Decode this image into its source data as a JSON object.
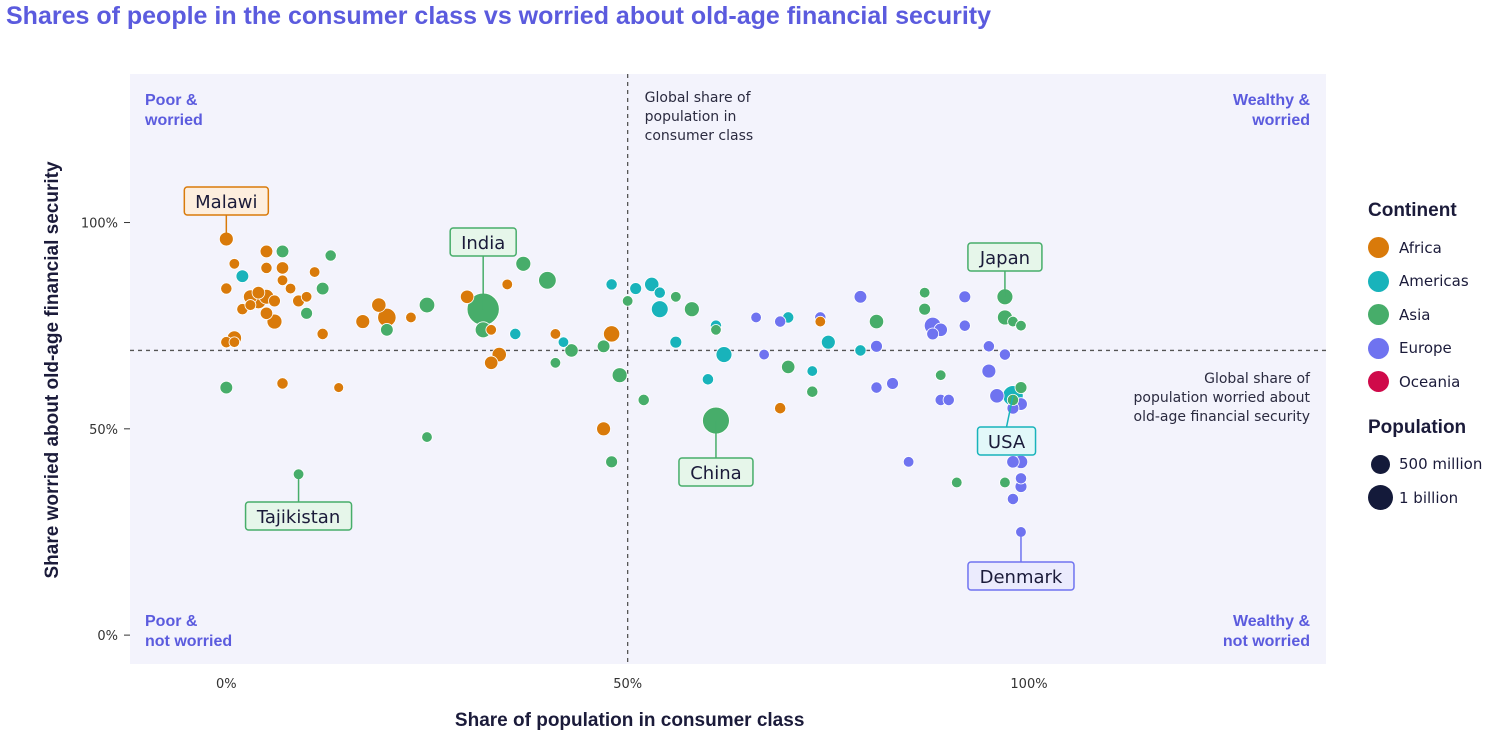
{
  "title": "Shares of people in the consumer class vs worried about old-age financial security",
  "colors": {
    "title": "#5b5bde",
    "plot_bg": "#f3f3fc",
    "quadrant_label": "#5b5bde",
    "Africa": "#d97a0a",
    "Americas": "#18b3bb",
    "Asia": "#47ad6a",
    "Europe": "#6f73f0",
    "Oceania": "#cf0a4a"
  },
  "quadrants": {
    "top_left": [
      "Poor &",
      "worried"
    ],
    "top_right": [
      "Wealthy &",
      "worried"
    ],
    "bottom_left": [
      "Poor &",
      "not worried"
    ],
    "bottom_right": [
      "Wealthy &",
      "not worried"
    ]
  },
  "reference_lines": {
    "vertical_label": [
      "Global share of",
      "population in",
      "consumer class"
    ],
    "horizontal_label": [
      "Global share of",
      "population worried about",
      "old-age financial security"
    ]
  },
  "legend": {
    "continent_title": "Continent",
    "continents": [
      "Africa",
      "Americas",
      "Asia",
      "Europe",
      "Oceania"
    ],
    "population_title": "Population",
    "population_items": [
      "500 million",
      "1 billion"
    ]
  },
  "chart_data": {
    "type": "scatter",
    "title": "Shares of people in the consumer class vs worried about old-age financial security",
    "xlabel": "Share of population in consumer class",
    "ylabel": "Share worried about old-age financial security",
    "xlim": [
      -12,
      137
    ],
    "ylim": [
      -7,
      136
    ],
    "x_ticks": [
      "0%",
      "50%",
      "100%"
    ],
    "y_ticks": [
      "0%",
      "50%",
      "100%"
    ],
    "grid": false,
    "legend_position": "right",
    "reference_x": 50,
    "reference_y": 69,
    "annotations": [
      {
        "label": "Malawi",
        "x": 0,
        "y": 96,
        "continent": "Africa"
      },
      {
        "label": "India",
        "x": 32,
        "y": 79,
        "continent": "Asia"
      },
      {
        "label": "Japan",
        "x": 97,
        "y": 82,
        "continent": "Asia"
      },
      {
        "label": "Tajikistan",
        "x": 9,
        "y": 39,
        "continent": "Asia"
      },
      {
        "label": "China",
        "x": 61,
        "y": 52,
        "continent": "Asia"
      },
      {
        "label": "USA",
        "x": 98,
        "y": 58,
        "continent": "Americas"
      },
      {
        "label": "Denmark",
        "x": 99,
        "y": 25,
        "continent": "Europe"
      }
    ],
    "series": [
      {
        "name": "Africa",
        "points": [
          [
            0,
            96,
            20
          ],
          [
            1,
            90,
            8
          ],
          [
            0,
            84,
            10
          ],
          [
            3,
            82,
            20
          ],
          [
            4,
            81,
            28
          ],
          [
            5,
            82,
            24
          ],
          [
            6,
            81,
            12
          ],
          [
            4,
            83,
            15
          ],
          [
            3,
            80,
            9
          ],
          [
            2,
            79,
            10
          ],
          [
            5,
            78,
            14
          ],
          [
            6,
            76,
            25
          ],
          [
            1,
            72,
            22
          ],
          [
            0,
            71,
            10
          ],
          [
            1,
            71,
            8
          ],
          [
            5,
            93,
            15
          ],
          [
            7,
            89,
            14
          ],
          [
            5,
            89,
            10
          ],
          [
            8,
            84,
            8
          ],
          [
            7,
            86,
            8
          ],
          [
            11,
            88,
            8
          ],
          [
            9,
            81,
            12
          ],
          [
            10,
            82,
            8
          ],
          [
            12,
            73,
            10
          ],
          [
            19,
            80,
            22
          ],
          [
            20,
            77,
            45
          ],
          [
            17,
            76,
            20
          ],
          [
            23,
            77,
            8
          ],
          [
            7,
            61,
            10
          ],
          [
            14,
            60,
            6
          ],
          [
            30,
            82,
            18
          ],
          [
            35,
            85,
            8
          ],
          [
            33,
            74,
            8
          ],
          [
            34,
            68,
            22
          ],
          [
            33,
            66,
            18
          ],
          [
            41,
            73,
            8
          ],
          [
            48,
            73,
            32
          ],
          [
            47,
            50,
            20
          ],
          [
            69,
            55,
            10
          ],
          [
            74,
            76,
            8
          ]
        ]
      },
      {
        "name": "Americas",
        "points": [
          [
            2,
            87,
            15
          ],
          [
            42,
            71,
            8
          ],
          [
            36,
            73,
            10
          ],
          [
            48,
            85,
            10
          ],
          [
            51,
            84,
            12
          ],
          [
            53,
            85,
            22
          ],
          [
            54,
            83,
            10
          ],
          [
            54,
            79,
            35
          ],
          [
            56,
            71,
            12
          ],
          [
            61,
            75,
            10
          ],
          [
            62,
            68,
            30
          ],
          [
            60,
            62,
            10
          ],
          [
            70,
            77,
            10
          ],
          [
            73,
            64,
            8
          ],
          [
            75,
            71,
            20
          ],
          [
            79,
            69,
            10
          ],
          [
            98,
            58,
            60
          ]
        ]
      },
      {
        "name": "Asia",
        "points": [
          [
            0,
            60,
            15
          ],
          [
            7,
            93,
            15
          ],
          [
            12,
            84,
            15
          ],
          [
            13,
            92,
            10
          ],
          [
            10,
            78,
            12
          ],
          [
            20,
            74,
            15
          ],
          [
            25,
            80,
            28
          ],
          [
            25,
            48,
            8
          ],
          [
            9,
            39,
            8
          ],
          [
            32,
            79,
            185
          ],
          [
            32,
            74,
            30
          ],
          [
            37,
            90,
            25
          ],
          [
            40,
            86,
            40
          ],
          [
            41,
            66,
            8
          ],
          [
            43,
            69,
            18
          ],
          [
            47,
            70,
            15
          ],
          [
            48,
            42,
            12
          ],
          [
            49,
            63,
            25
          ],
          [
            50,
            81,
            8
          ],
          [
            52,
            57,
            10
          ],
          [
            56,
            82,
            8
          ],
          [
            58,
            79,
            25
          ],
          [
            61,
            74,
            8
          ],
          [
            61,
            52,
            120
          ],
          [
            70,
            65,
            18
          ],
          [
            73,
            59,
            10
          ],
          [
            81,
            76,
            22
          ],
          [
            87,
            83,
            8
          ],
          [
            87,
            79,
            12
          ],
          [
            89,
            63,
            8
          ],
          [
            91,
            37,
            8
          ],
          [
            97,
            37,
            8
          ],
          [
            97,
            82,
            30
          ],
          [
            97,
            77,
            25
          ],
          [
            98,
            76,
            8
          ],
          [
            99,
            75,
            8
          ],
          [
            99,
            60,
            12
          ],
          [
            98,
            57,
            10
          ]
        ]
      },
      {
        "name": "Europe",
        "points": [
          [
            66,
            77,
            8
          ],
          [
            67,
            68,
            8
          ],
          [
            69,
            76,
            10
          ],
          [
            74,
            77,
            10
          ],
          [
            79,
            82,
            15
          ],
          [
            81,
            70,
            12
          ],
          [
            81,
            60,
            10
          ],
          [
            83,
            61,
            12
          ],
          [
            85,
            42,
            8
          ],
          [
            88,
            73,
            12
          ],
          [
            88,
            75,
            35
          ],
          [
            89,
            74,
            18
          ],
          [
            89,
            57,
            10
          ],
          [
            90,
            57,
            10
          ],
          [
            92,
            82,
            12
          ],
          [
            92,
            75,
            10
          ],
          [
            95,
            70,
            10
          ],
          [
            95,
            64,
            20
          ],
          [
            96,
            58,
            22
          ],
          [
            97,
            68,
            10
          ],
          [
            98,
            55,
            12
          ],
          [
            98,
            42,
            14
          ],
          [
            99,
            42,
            18
          ],
          [
            99,
            46,
            10
          ],
          [
            99,
            45,
            12
          ],
          [
            99,
            38,
            10
          ],
          [
            99,
            36,
            12
          ],
          [
            98,
            33,
            10
          ],
          [
            99,
            25,
            8
          ],
          [
            99,
            56,
            15
          ]
        ]
      },
      {
        "name": "Oceania",
        "points": []
      }
    ]
  }
}
